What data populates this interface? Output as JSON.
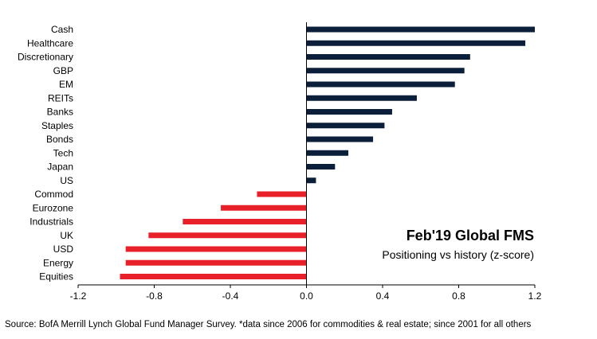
{
  "chart_data": {
    "type": "bar",
    "orientation": "horizontal",
    "title": "Feb'19 Global FMS",
    "subtitle": "Positioning vs history (z-score)",
    "categories": [
      "Cash",
      "Healthcare",
      "Discretionary",
      "GBP",
      "EM",
      "REITs",
      "Banks",
      "Staples",
      "Bonds",
      "Tech",
      "Japan",
      "US",
      "Commod",
      "Eurozone",
      "Industrials",
      "UK",
      "USD",
      "Energy",
      "Equities"
    ],
    "values": [
      1.2,
      1.15,
      0.86,
      0.83,
      0.78,
      0.58,
      0.45,
      0.41,
      0.35,
      0.22,
      0.15,
      0.05,
      -0.26,
      -0.45,
      -0.65,
      -0.83,
      -0.95,
      -0.95,
      -0.98
    ],
    "xlim": [
      -1.2,
      1.2
    ],
    "xticks": [
      "-1.2",
      "-0.8",
      "-0.4",
      "0.0",
      "0.4",
      "0.8",
      "1.2"
    ],
    "tick_values": [
      -1.2,
      -0.8,
      -0.4,
      0.0,
      0.4,
      0.8,
      1.2
    ],
    "grid": false,
    "colors": {
      "positive": "#0b1f3a",
      "negative": "#e8202a",
      "axis": "#000000"
    }
  },
  "source": "Source:  BofA Merrill Lynch Global Fund Manager Survey. *data since 2006 for commodities & real estate; since 2001 for all others"
}
